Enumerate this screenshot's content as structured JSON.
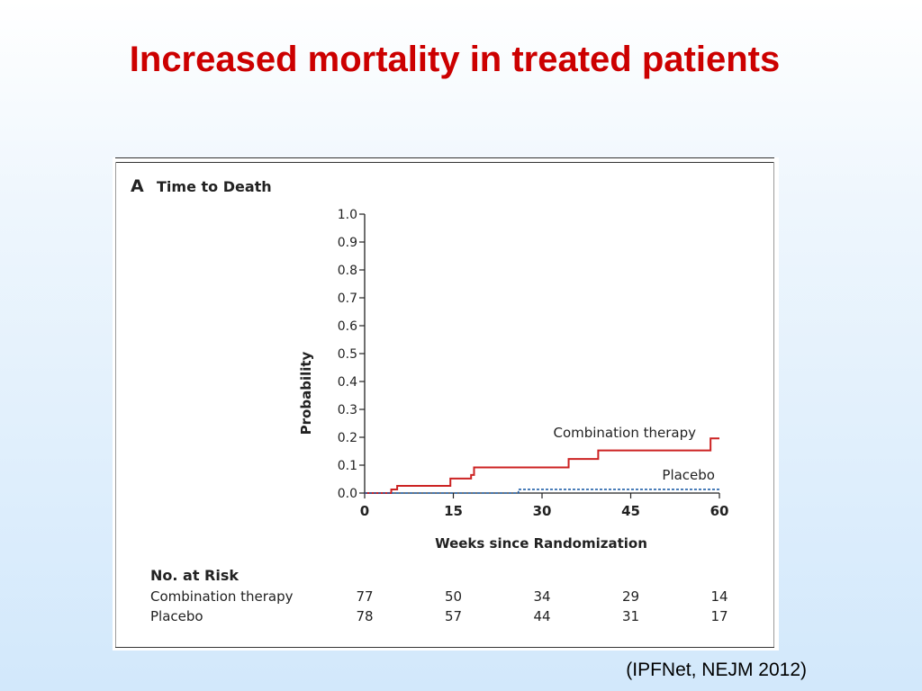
{
  "slide": {
    "title": "Increased mortality in treated patients",
    "citation": "(IPFNet, NEJM 2012)",
    "title_color": "#cc0000"
  },
  "chart_data": {
    "type": "line",
    "panel_label": "A",
    "title": "Time to Death",
    "xlabel": "Weeks since Randomization",
    "ylabel": "Probability",
    "xlim": [
      0,
      60
    ],
    "ylim": [
      0.0,
      1.0
    ],
    "xticks": [
      "0",
      "15",
      "30",
      "45",
      "60"
    ],
    "yticks": [
      "0.0",
      "0.1",
      "0.2",
      "0.3",
      "0.4",
      "0.5",
      "0.6",
      "0.7",
      "0.8",
      "0.9",
      "1.0"
    ],
    "series": [
      {
        "name": "Combination therapy",
        "style": "solid",
        "color": "#cc2222",
        "steps": [
          [
            0,
            0.0
          ],
          [
            4.5,
            0.013
          ],
          [
            5.5,
            0.026
          ],
          [
            14.5,
            0.052
          ],
          [
            18,
            0.065
          ],
          [
            18.5,
            0.092
          ],
          [
            34.5,
            0.122
          ],
          [
            39.5,
            0.153
          ],
          [
            58.5,
            0.196
          ],
          [
            60,
            0.196
          ]
        ]
      },
      {
        "name": "Placebo",
        "style": "dashed",
        "color": "#1f5fa8",
        "steps": [
          [
            0,
            0.0
          ],
          [
            26,
            0.013
          ],
          [
            60,
            0.013
          ]
        ]
      }
    ],
    "risk_table": {
      "heading": "No. at Risk",
      "rows": [
        {
          "label": "Combination therapy",
          "values": [
            "77",
            "50",
            "34",
            "29",
            "14"
          ]
        },
        {
          "label": "Placebo",
          "values": [
            "78",
            "57",
            "44",
            "31",
            "17"
          ]
        }
      ]
    }
  }
}
